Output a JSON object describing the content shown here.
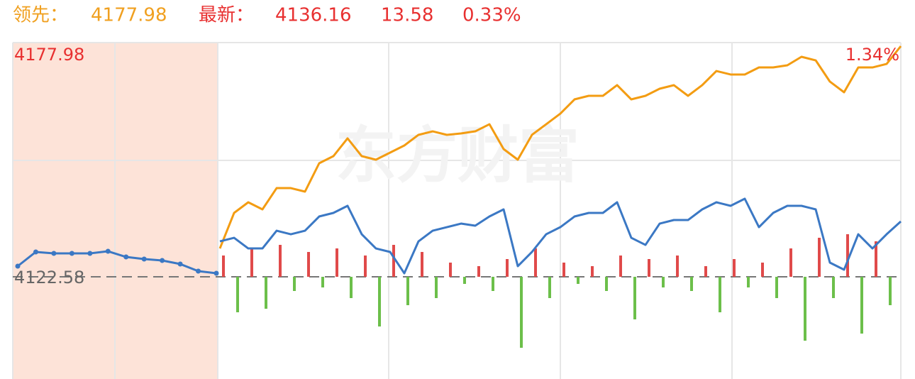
{
  "chart_data": {
    "type": "intraday",
    "header": {
      "lead_label": "领先：",
      "lead_value": "4177.98",
      "latest_label": "最新：",
      "latest_value": "4136.16",
      "change": "13.58",
      "change_pct": "0.33%"
    },
    "watermark": "东方财富",
    "ylim": [
      4098.41,
      4177.98
    ],
    "yticks": [
      4177.98,
      4122.58
    ],
    "yticks_right": [
      {
        "value": 4177.98,
        "label": "1.34%"
      }
    ],
    "baseline": 4122.58,
    "y2lim": [
      -144,
      330
    ],
    "series": [
      {
        "color": "#3b78c4",
        "values": [
          4125.1,
          4128.46,
          4128.12,
          4128.12,
          4128.12,
          4128.62,
          4127.28,
          4126.78,
          4126.44,
          4125.6,
          4123.92,
          4123.42
        ]
      },
      {
        "color": "#f39c12",
        "values": [
          4129.29,
          4137.69,
          4140.21,
          4138.53,
          4143.56,
          4143.56,
          4142.73,
          4149.44,
          4151.12,
          4155.32,
          4151.12,
          4150.28,
          4151.96,
          4153.64,
          4156.16,
          4156.99,
          4156.16,
          4156.49,
          4156.99,
          4158.67,
          4152.8,
          4150.28,
          4156.16,
          4158.67,
          4161.19,
          4164.55,
          4165.39,
          4165.39,
          4167.91,
          4164.55,
          4165.39,
          4167.07,
          4167.91,
          4165.39,
          4167.91,
          4171.26,
          4170.43,
          4170.43,
          4172.1,
          4172.1,
          4172.61,
          4174.62,
          4173.78,
          4168.75,
          4166.23,
          4172.1,
          4172.1,
          4172.94,
          4177.14
        ]
      },
      {
        "color": "#3b78c4",
        "values": [
          4130.97,
          4131.81,
          4129.29,
          4129.29,
          4133.49,
          4132.65,
          4133.49,
          4136.85,
          4137.69,
          4139.37,
          4132.65,
          4129.29,
          4128.46,
          4123.42,
          4130.97,
          4133.49,
          4134.33,
          4135.17,
          4134.67,
          4136.85,
          4138.53,
          4125.1,
          4128.46,
          4132.65,
          4134.33,
          4136.85,
          4137.69,
          4137.69,
          4140.21,
          4131.81,
          4130.13,
          4135.17,
          4136.01,
          4136.01,
          4138.53,
          4140.21,
          4139.37,
          4141.05,
          4134.33,
          4137.69,
          4139.37,
          4139.37,
          4138.53,
          4125.94,
          4124.26,
          4132.65,
          4129.29,
          4132.65,
          4135.67
        ]
      }
    ],
    "bars": {
      "up_color": "#e04a4a",
      "down_color": "#6cbf4a",
      "values": [
        30,
        -50,
        40,
        -45,
        45,
        -20,
        35,
        -15,
        40,
        -30,
        30,
        -70,
        45,
        -40,
        35,
        -30,
        20,
        -10,
        15,
        -20,
        25,
        -100,
        40,
        -30,
        20,
        -10,
        15,
        -20,
        30,
        -60,
        25,
        -15,
        30,
        -20,
        15,
        -50,
        25,
        -15,
        20,
        -30,
        40,
        -90,
        55,
        -30,
        60,
        -80,
        50,
        -40
      ]
    }
  }
}
